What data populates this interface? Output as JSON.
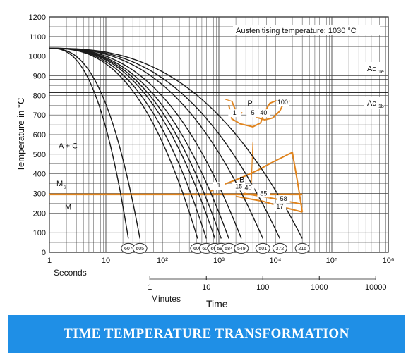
{
  "chart_data": {
    "type": "line",
    "title": "",
    "ylabel": "Temperature in °C",
    "xlabel": "Time",
    "ylim": [
      0,
      1200
    ],
    "yticks": [
      "0",
      "100",
      "200",
      "300",
      "400",
      "500",
      "600",
      "700",
      "800",
      "900",
      "1000",
      "1100",
      "1200"
    ],
    "x_log": true,
    "xlim_seconds": [
      1,
      1000000
    ],
    "seconds_ticks": [
      {
        "v": 1,
        "label": "1"
      },
      {
        "v": 10,
        "label": "10"
      },
      {
        "v": 100,
        "label": "10²"
      },
      {
        "v": 1000,
        "label": "10³"
      },
      {
        "v": 10000,
        "label": "10⁴"
      },
      {
        "v": 100000,
        "label": "10⁵"
      },
      {
        "v": 1000000,
        "label": "10⁶"
      }
    ],
    "seconds_label": "Seconds",
    "minutes_label": "Minutes",
    "minutes_ticks": [
      {
        "v": 60,
        "label": "1"
      },
      {
        "v": 600,
        "label": "10"
      },
      {
        "v": 6000,
        "label": "100"
      },
      {
        "v": 60000,
        "label": "1000"
      },
      {
        "v": 600000,
        "label": "10000"
      }
    ],
    "grid": true,
    "annotations": {
      "austenitising": "Austenitising temperature: 1030 °C",
      "ac1e": "Ac",
      "ac1e_sub": "1e",
      "ac1b": "Ac",
      "ac1b_sub": "1b",
      "a_plus_c": "A + C",
      "ms": "M",
      "ms_sub": "s",
      "m": "M",
      "p": "P",
      "b": "B"
    },
    "ac1e_temp": 880,
    "ac1b_temp": 815,
    "ms_temp": 295,
    "start_temp": 1040,
    "cooling_curves": [
      {
        "label": "607",
        "end": 25
      },
      {
        "label": "605",
        "end": 40
      },
      {
        "label": "608",
        "end": 420
      },
      {
        "label": "603",
        "end": 600
      },
      {
        "label": "601",
        "end": 850
      },
      {
        "label": "590",
        "end": 1100
      },
      {
        "label": "584",
        "end": 1500
      },
      {
        "label": "549",
        "end": 2500
      },
      {
        "label": "501",
        "end": 6000
      },
      {
        "label": "372",
        "end": 12000
      },
      {
        "label": "216",
        "end": 30000
      }
    ],
    "region_labels": [
      {
        "text": "100",
        "t": 13500,
        "T": 755
      },
      {
        "text": "40",
        "t": 6200,
        "T": 700
      },
      {
        "text": "5",
        "t": 4000,
        "T": 700
      },
      {
        "text": "1",
        "t": 1900,
        "T": 700
      },
      {
        "text": "1",
        "t": 1000,
        "T": 330
      },
      {
        "text": "15",
        "t": 2250,
        "T": 325
      },
      {
        "text": "40",
        "t": 3300,
        "T": 318
      },
      {
        "text": "85",
        "t": 6200,
        "T": 290
      },
      {
        "text": "58",
        "t": 14000,
        "T": 262
      },
      {
        "text": "17",
        "t": 12000,
        "T": 222
      }
    ]
  },
  "banner": {
    "title": "TIME TEMPERATURE TRANSFORMATION",
    "bg": "#1f8fe6"
  },
  "colors": {
    "transformation": "#e0841e",
    "curve": "#1a1a1a",
    "grid": "#444444"
  }
}
